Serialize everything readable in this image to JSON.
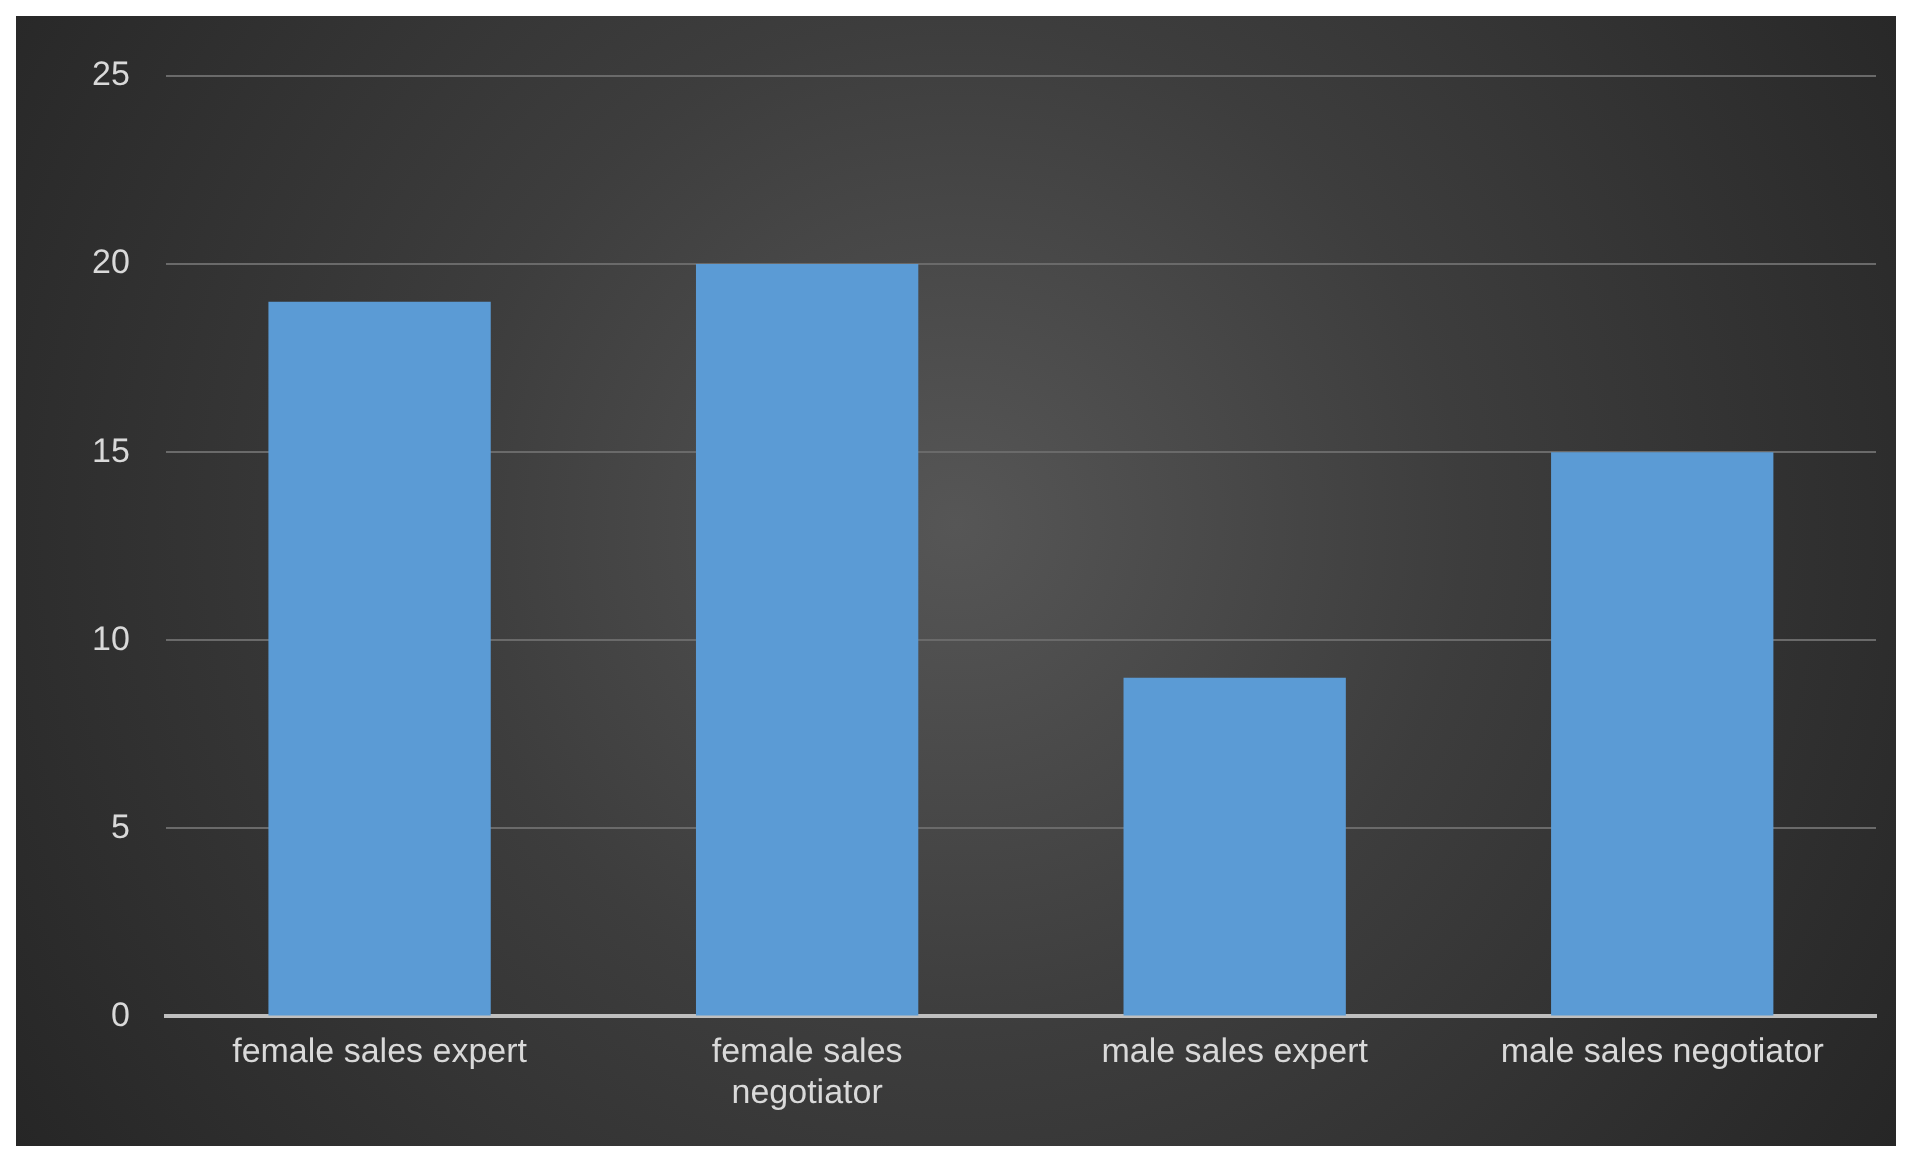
{
  "chart_data": {
    "type": "bar",
    "categories": [
      "female sales expert",
      "female sales negotiator",
      "male sales expert",
      "male sales negotiator"
    ],
    "values": [
      19,
      20,
      9,
      15
    ],
    "color": "#5b9bd5",
    "ylim": [
      0,
      25
    ],
    "yticks": [
      0,
      5,
      10,
      15,
      20,
      25
    ],
    "grid": "y",
    "legend": false
  }
}
